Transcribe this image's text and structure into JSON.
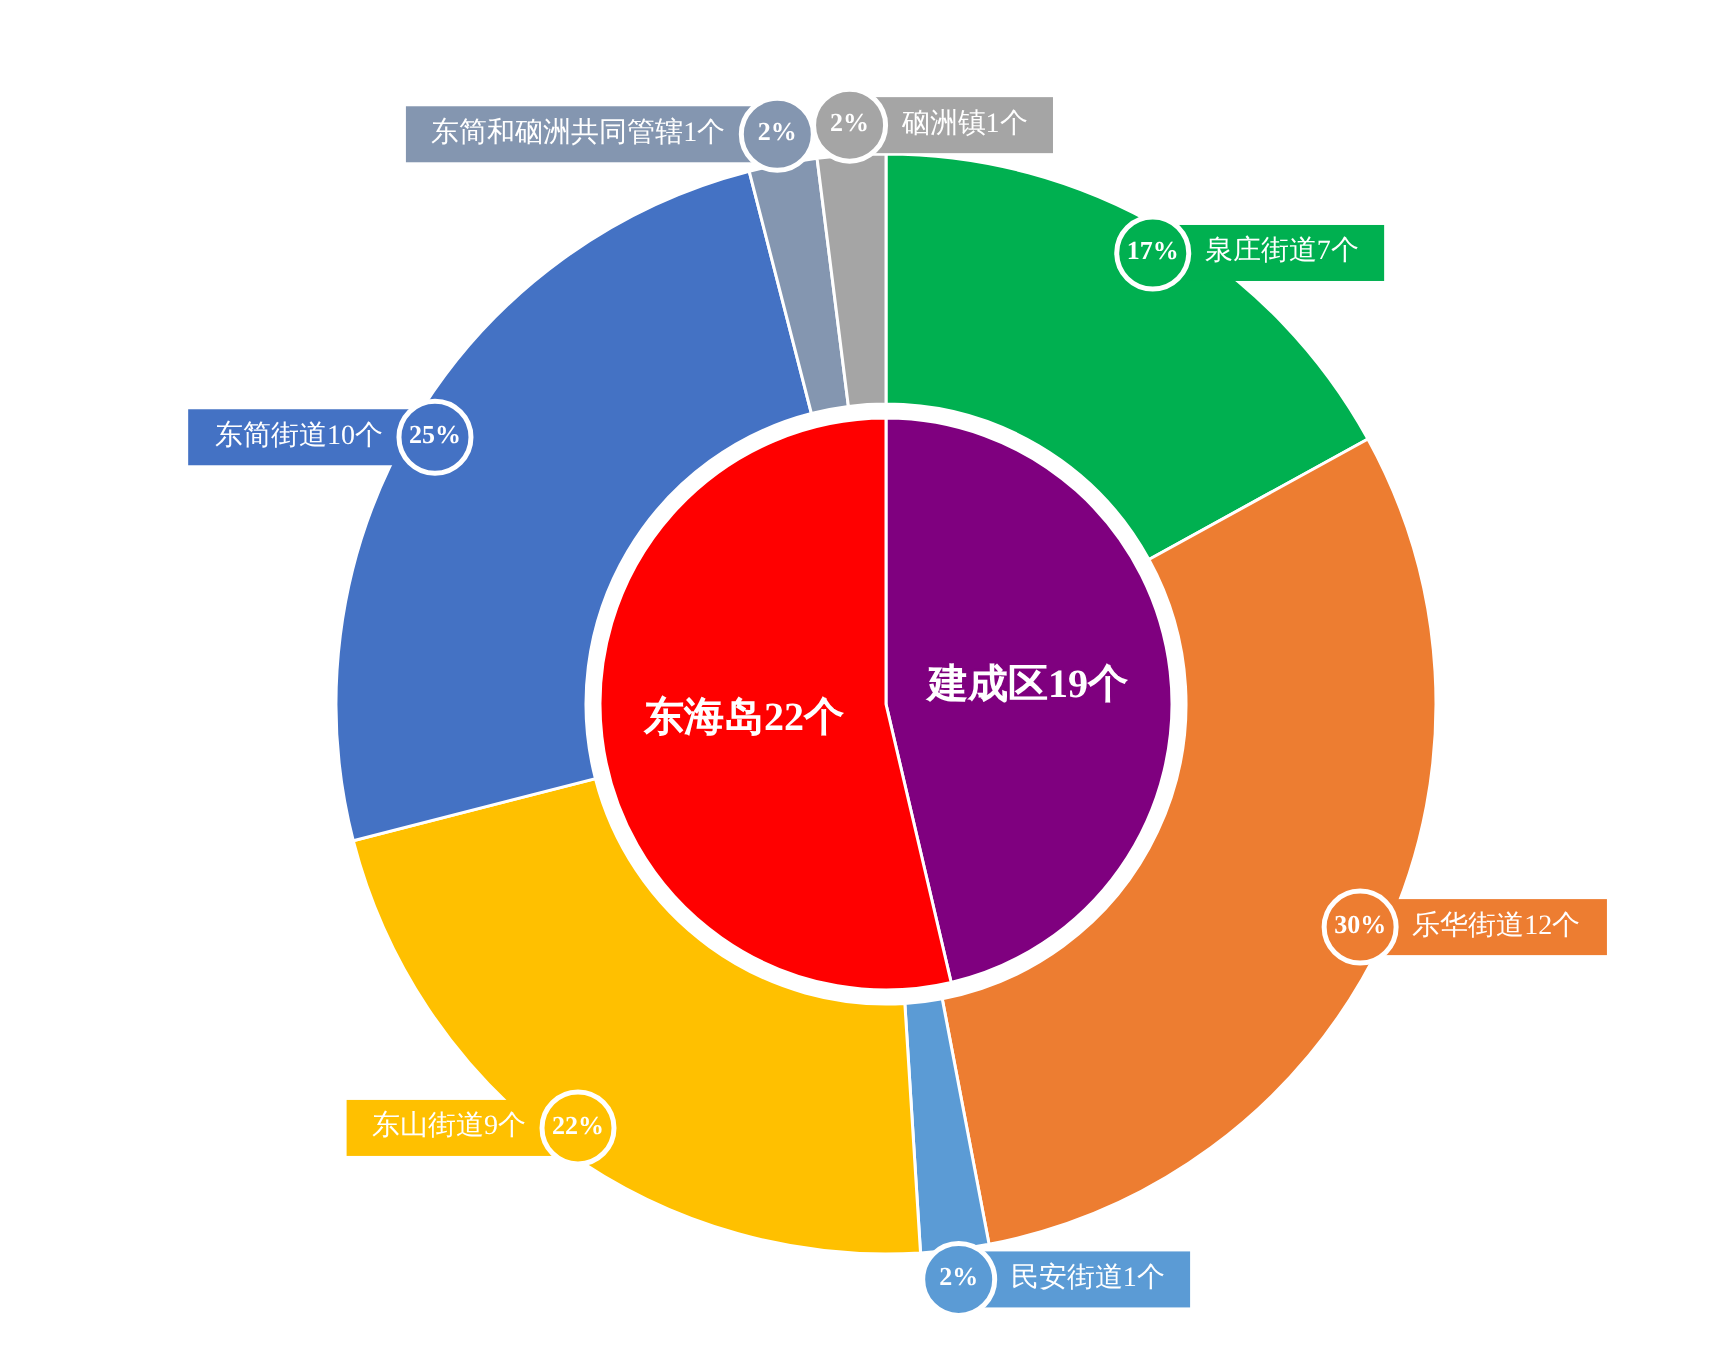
{
  "chart_data": [
    {
      "type": "pie",
      "categories": [
        "建成区19个",
        "东海岛22个"
      ],
      "values": [
        19,
        22
      ],
      "colors": [
        "#7f007f",
        "#ff0000"
      ]
    },
    {
      "type": "donut",
      "categories": [
        "泉庄街道7个",
        "乐华街道12个",
        "民安街道1个",
        "东山街道9个",
        "东简街道10个",
        "东简和硇洲共同管辖1个",
        "硇洲镇1个"
      ],
      "values": [
        17,
        30,
        2,
        22,
        25,
        2,
        2
      ],
      "value_labels": [
        "17%",
        "30%",
        "2%",
        "22%",
        "25%",
        "2%",
        "2%"
      ],
      "colors": [
        "#00b050",
        "#ed7d31",
        "#5b9bd5",
        "#ffc000",
        "#4472c4",
        "#8496b0",
        "#a5a5a5"
      ]
    }
  ]
}
